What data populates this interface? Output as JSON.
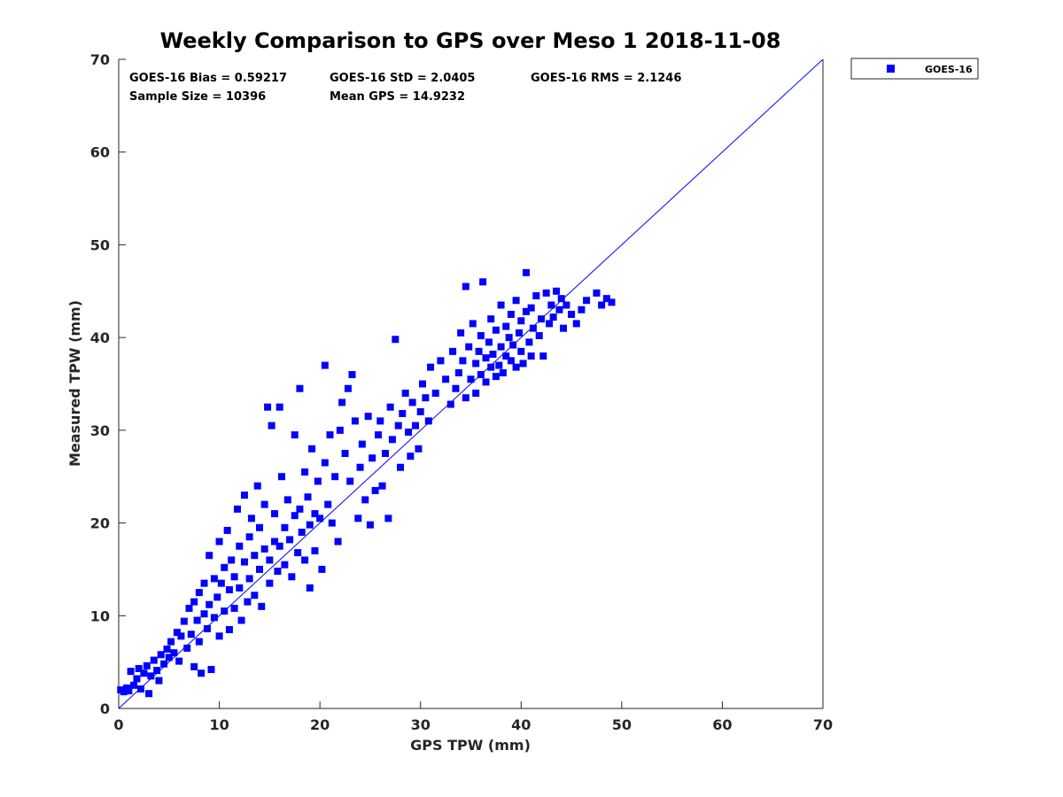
{
  "chart_data": {
    "type": "scatter",
    "title": "Weekly Comparison to GPS over Meso 1 2018-11-08",
    "xlabel": "GPS TPW (mm)",
    "ylabel": "Measured TPW (mm)",
    "xlim": [
      0,
      70
    ],
    "ylim": [
      0,
      70
    ],
    "xticks": [
      "0",
      "10",
      "20",
      "30",
      "40",
      "50",
      "60",
      "70"
    ],
    "yticks": [
      "0",
      "10",
      "20",
      "30",
      "40",
      "50",
      "60",
      "70"
    ],
    "legend_position": "outside-top-right",
    "reference_line": {
      "x": [
        0,
        70
      ],
      "y": [
        0,
        70
      ]
    },
    "stats": {
      "bias": "GOES-16 Bias = 0.59217",
      "std": "GOES-16 StD = 2.0405",
      "rms": "GOES-16 RMS = 2.1246",
      "sample_size": "Sample Size = 10396",
      "mean_gps": "Mean GPS = 14.9232"
    },
    "series": [
      {
        "name": "GOES-16",
        "color": "#0000ff",
        "marker": "square",
        "points": [
          [
            0.2,
            2.0
          ],
          [
            0.5,
            1.8
          ],
          [
            0.8,
            2.2
          ],
          [
            1.0,
            1.9
          ],
          [
            1.2,
            4.0
          ],
          [
            1.5,
            2.5
          ],
          [
            1.8,
            3.2
          ],
          [
            2.0,
            4.3
          ],
          [
            2.2,
            2.1
          ],
          [
            2.5,
            3.8
          ],
          [
            2.8,
            4.6
          ],
          [
            3.0,
            1.6
          ],
          [
            3.2,
            3.5
          ],
          [
            3.5,
            5.2
          ],
          [
            3.8,
            4.1
          ],
          [
            4.0,
            3.0
          ],
          [
            4.2,
            5.8
          ],
          [
            4.5,
            4.8
          ],
          [
            4.8,
            6.4
          ],
          [
            5.0,
            5.5
          ],
          [
            5.2,
            7.2
          ],
          [
            5.5,
            6.0
          ],
          [
            5.8,
            8.2
          ],
          [
            6.0,
            5.1
          ],
          [
            6.2,
            7.8
          ],
          [
            6.5,
            9.4
          ],
          [
            6.8,
            6.5
          ],
          [
            7.0,
            10.8
          ],
          [
            7.2,
            8.0
          ],
          [
            7.5,
            4.5
          ],
          [
            7.5,
            11.5
          ],
          [
            7.8,
            9.5
          ],
          [
            8.0,
            12.5
          ],
          [
            8.0,
            7.2
          ],
          [
            8.2,
            3.8
          ],
          [
            8.5,
            10.2
          ],
          [
            8.5,
            13.5
          ],
          [
            8.8,
            8.6
          ],
          [
            9.0,
            16.5
          ],
          [
            9.0,
            11.2
          ],
          [
            9.2,
            4.2
          ],
          [
            9.5,
            14.0
          ],
          [
            9.5,
            9.8
          ],
          [
            9.8,
            12.0
          ],
          [
            10.0,
            18.0
          ],
          [
            10.0,
            7.8
          ],
          [
            10.2,
            13.5
          ],
          [
            10.5,
            15.2
          ],
          [
            10.5,
            10.5
          ],
          [
            10.8,
            19.2
          ],
          [
            11.0,
            12.8
          ],
          [
            11.0,
            8.5
          ],
          [
            11.2,
            16.0
          ],
          [
            11.5,
            14.2
          ],
          [
            11.5,
            10.8
          ],
          [
            11.8,
            21.5
          ],
          [
            12.0,
            13.0
          ],
          [
            12.0,
            17.5
          ],
          [
            12.2,
            9.5
          ],
          [
            12.5,
            15.8
          ],
          [
            12.5,
            23.0
          ],
          [
            12.8,
            11.5
          ],
          [
            13.0,
            18.5
          ],
          [
            13.0,
            14.0
          ],
          [
            13.2,
            20.5
          ],
          [
            13.5,
            12.2
          ],
          [
            13.5,
            16.5
          ],
          [
            13.8,
            24.0
          ],
          [
            14.0,
            15.0
          ],
          [
            14.0,
            19.5
          ],
          [
            14.2,
            11.0
          ],
          [
            14.5,
            17.2
          ],
          [
            14.5,
            22.0
          ],
          [
            14.8,
            32.5
          ],
          [
            15.0,
            16.0
          ],
          [
            15.0,
            13.5
          ],
          [
            15.2,
            30.5
          ],
          [
            15.5,
            18.0
          ],
          [
            15.5,
            21.0
          ],
          [
            15.8,
            14.8
          ],
          [
            16.0,
            32.5
          ],
          [
            16.0,
            17.5
          ],
          [
            16.2,
            25.0
          ],
          [
            16.5,
            19.5
          ],
          [
            16.5,
            15.5
          ],
          [
            16.8,
            22.5
          ],
          [
            17.0,
            18.2
          ],
          [
            17.2,
            14.2
          ],
          [
            17.5,
            20.8
          ],
          [
            17.5,
            29.5
          ],
          [
            17.8,
            16.8
          ],
          [
            18.0,
            34.5
          ],
          [
            18.0,
            21.5
          ],
          [
            18.2,
            19.0
          ],
          [
            18.5,
            25.5
          ],
          [
            18.5,
            16.0
          ],
          [
            18.8,
            22.8
          ],
          [
            19.0,
            13.0
          ],
          [
            19.0,
            19.8
          ],
          [
            19.2,
            28.0
          ],
          [
            19.5,
            21.0
          ],
          [
            19.5,
            17.0
          ],
          [
            19.8,
            24.5
          ],
          [
            20.0,
            20.5
          ],
          [
            20.2,
            15.0
          ],
          [
            20.5,
            37.0
          ],
          [
            20.5,
            26.5
          ],
          [
            20.8,
            22.0
          ],
          [
            21.0,
            29.5
          ],
          [
            21.2,
            20.0
          ],
          [
            21.5,
            25.0
          ],
          [
            21.8,
            18.0
          ],
          [
            22.0,
            30.0
          ],
          [
            22.2,
            33.0
          ],
          [
            22.5,
            27.5
          ],
          [
            22.8,
            34.5
          ],
          [
            23.0,
            24.5
          ],
          [
            23.2,
            36.0
          ],
          [
            23.5,
            31.0
          ],
          [
            23.8,
            20.5
          ],
          [
            24.0,
            26.0
          ],
          [
            24.2,
            28.5
          ],
          [
            24.5,
            22.5
          ],
          [
            24.8,
            31.5
          ],
          [
            25.0,
            19.8
          ],
          [
            25.2,
            27.0
          ],
          [
            25.5,
            23.5
          ],
          [
            25.8,
            29.5
          ],
          [
            26.0,
            31.0
          ],
          [
            26.2,
            24.0
          ],
          [
            26.5,
            27.5
          ],
          [
            26.8,
            20.5
          ],
          [
            27.0,
            32.5
          ],
          [
            27.2,
            29.0
          ],
          [
            27.5,
            39.8
          ],
          [
            27.8,
            30.5
          ],
          [
            28.0,
            26.0
          ],
          [
            28.2,
            31.8
          ],
          [
            28.5,
            34.0
          ],
          [
            28.8,
            29.8
          ],
          [
            29.0,
            27.2
          ],
          [
            29.2,
            33.0
          ],
          [
            29.5,
            30.5
          ],
          [
            29.8,
            28.0
          ],
          [
            30.0,
            32.0
          ],
          [
            30.2,
            35.0
          ],
          [
            30.5,
            33.5
          ],
          [
            30.8,
            31.0
          ],
          [
            31.0,
            36.8
          ],
          [
            31.5,
            34.0
          ],
          [
            32.0,
            37.5
          ],
          [
            32.5,
            35.5
          ],
          [
            33.0,
            32.8
          ],
          [
            33.2,
            38.5
          ],
          [
            33.5,
            34.5
          ],
          [
            33.8,
            36.2
          ],
          [
            34.0,
            40.5
          ],
          [
            34.2,
            37.5
          ],
          [
            34.5,
            33.5
          ],
          [
            34.5,
            45.5
          ],
          [
            34.8,
            39.0
          ],
          [
            35.0,
            35.5
          ],
          [
            35.2,
            41.5
          ],
          [
            35.5,
            37.2
          ],
          [
            35.5,
            34.0
          ],
          [
            35.8,
            38.5
          ],
          [
            36.0,
            36.0
          ],
          [
            36.0,
            40.2
          ],
          [
            36.2,
            46.0
          ],
          [
            36.5,
            37.8
          ],
          [
            36.5,
            35.2
          ],
          [
            36.8,
            39.5
          ],
          [
            37.0,
            36.8
          ],
          [
            37.0,
            42.0
          ],
          [
            37.2,
            38.2
          ],
          [
            37.5,
            35.8
          ],
          [
            37.5,
            40.8
          ],
          [
            37.8,
            37.0
          ],
          [
            38.0,
            43.5
          ],
          [
            38.0,
            39.0
          ],
          [
            38.2,
            36.2
          ],
          [
            38.5,
            41.2
          ],
          [
            38.5,
            38.0
          ],
          [
            38.8,
            40.0
          ],
          [
            39.0,
            37.5
          ],
          [
            39.0,
            42.5
          ],
          [
            39.2,
            39.2
          ],
          [
            39.5,
            44.0
          ],
          [
            39.5,
            36.8
          ],
          [
            39.8,
            40.5
          ],
          [
            40.0,
            38.5
          ],
          [
            40.0,
            41.8
          ],
          [
            40.2,
            37.2
          ],
          [
            40.5,
            42.8
          ],
          [
            40.5,
            47.0
          ],
          [
            40.8,
            39.5
          ],
          [
            41.0,
            43.2
          ],
          [
            41.0,
            38.0
          ],
          [
            41.2,
            41.0
          ],
          [
            41.5,
            44.5
          ],
          [
            41.8,
            40.2
          ],
          [
            42.0,
            42.0
          ],
          [
            42.2,
            38.0
          ],
          [
            42.5,
            44.8
          ],
          [
            42.8,
            41.5
          ],
          [
            43.0,
            43.5
          ],
          [
            43.2,
            42.2
          ],
          [
            43.5,
            45.0
          ],
          [
            43.8,
            43.0
          ],
          [
            44.0,
            44.2
          ],
          [
            44.2,
            41.0
          ],
          [
            44.5,
            43.5
          ],
          [
            45.0,
            42.5
          ],
          [
            45.5,
            41.5
          ],
          [
            46.0,
            43.0
          ],
          [
            46.5,
            44.0
          ],
          [
            47.5,
            44.8
          ],
          [
            48.0,
            43.5
          ],
          [
            48.5,
            44.2
          ],
          [
            49.0,
            43.8
          ]
        ]
      }
    ]
  }
}
